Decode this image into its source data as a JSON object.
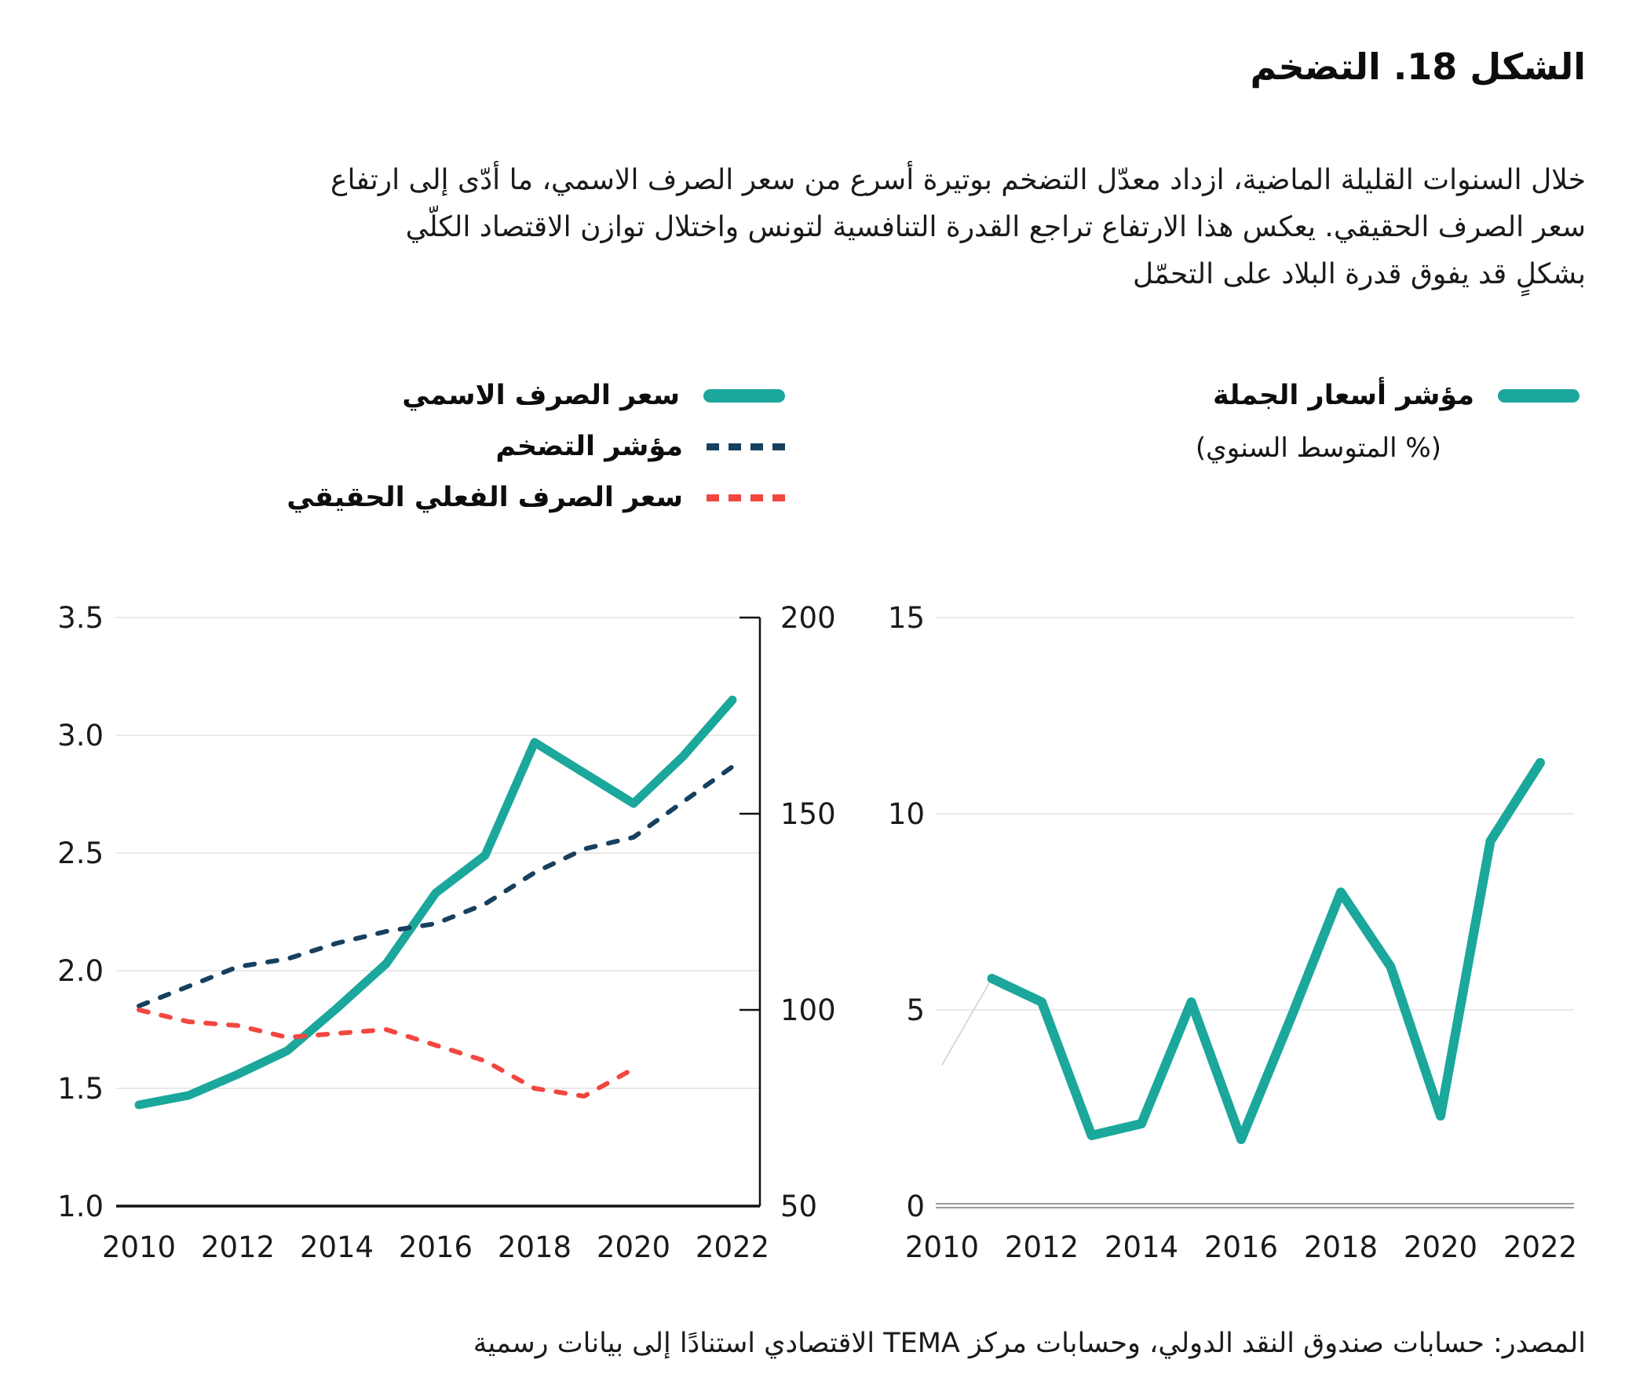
{
  "title": "الشكل 18. التضخم",
  "intro": {
    "lines": [
      "خلال السنوات القليلة الماضية، ازداد معدّل التضخم بوتيرة أسرع من سعر الصرف الاسمي، ما أدّى إلى ارتفاع",
      "سعر الصرف الحقيقي. يعكس هذا الارتفاع تراجع القدرة التنافسية لتونس واختلال توازن الاقتصاد الكلّي",
      "بشكلٍ قد يفوق قدرة البلاد على التحمّل"
    ]
  },
  "legend_left": {
    "items": [
      {
        "label": "سعر الصرف الاسمي",
        "style": "solid",
        "color": "#1BA79B"
      },
      {
        "label": "مؤشر التضخم",
        "style": "dashed",
        "color": "#17405F"
      },
      {
        "label": "سعر الصرف الفعلي الحقيقي",
        "style": "dashed",
        "color": "#F2473F"
      }
    ]
  },
  "legend_right": {
    "label": "مؤشر أسعار الجملة",
    "sublabel": "(% المتوسط السنوي)",
    "style": "solid",
    "color": "#1BA79B"
  },
  "source": "المصدر: حسابات صندوق النقد الدولي،  وحسابات مركز TEMA الاقتصادي استنادًا إلى بيانات رسمية",
  "colors": {
    "teal": "#1BA79B",
    "navy": "#17405F",
    "red": "#F2473F",
    "grid": "#E9E9E9",
    "axis": "#111111",
    "zero_axis": "#9B9B9B",
    "connector": "#D9D9D9",
    "text": "#1a1a1a"
  },
  "chart_data": [
    {
      "id": "exchange-inflation-chart",
      "type": "line",
      "x_ticks": [
        2010,
        2012,
        2014,
        2016,
        2018,
        2020,
        2022
      ],
      "left_axis": {
        "min": 1.0,
        "max": 3.5,
        "tick_values": [
          1.0,
          1.5,
          2.0,
          2.5,
          3.0,
          3.5
        ],
        "tick_labels": [
          "1.0",
          "1.5",
          "2.0",
          "2.5",
          "3.0",
          "3.5"
        ]
      },
      "right_axis": {
        "min": 50,
        "max": 200,
        "tick_values": [
          50,
          100,
          150,
          200
        ],
        "tick_labels": [
          "50",
          "100",
          "150",
          "200"
        ]
      },
      "grid": true,
      "series": [
        {
          "name": "سعر الصرف الاسمي",
          "key": "nominal-exchange-rate",
          "axis": "left",
          "dash": false,
          "color": "#1BA79B",
          "width": 11,
          "x": [
            2010,
            2011,
            2012,
            2013,
            2014,
            2015,
            2016,
            2017,
            2018,
            2019,
            2020,
            2021,
            2022
          ],
          "values": [
            1.43,
            1.47,
            1.56,
            1.66,
            1.84,
            2.03,
            2.33,
            2.49,
            2.97,
            2.84,
            2.71,
            2.91,
            3.15
          ]
        },
        {
          "name": "مؤشر التضخم",
          "key": "inflation-index",
          "axis": "right",
          "dash": true,
          "color": "#17405F",
          "width": 6,
          "x": [
            2010,
            2011,
            2012,
            2013,
            2014,
            2015,
            2016,
            2017,
            2018,
            2019,
            2020,
            2021,
            2022
          ],
          "values": [
            101,
            106,
            111,
            113,
            117,
            120,
            122,
            127,
            135,
            141,
            144,
            153,
            162
          ]
        },
        {
          "name": "سعر الصرف الفعلي الحقيقي",
          "key": "real-effective-exchange-rate",
          "axis": "right",
          "dash": true,
          "color": "#F2473F",
          "width": 6,
          "x": [
            2010,
            2011,
            2012,
            2013,
            2014,
            2015,
            2016,
            2017,
            2018,
            2019,
            2020
          ],
          "values": [
            100,
            97,
            96,
            93,
            94,
            95,
            91,
            87,
            80,
            78,
            85
          ]
        }
      ]
    },
    {
      "id": "wholesale-price-chart",
      "type": "line",
      "x_ticks": [
        2010,
        2012,
        2014,
        2016,
        2018,
        2020,
        2022
      ],
      "y_axis": {
        "min": 0,
        "max": 15,
        "tick_values": [
          0,
          5,
          10,
          15
        ],
        "tick_labels": [
          "0",
          "5",
          "10",
          "15"
        ]
      },
      "grid": true,
      "series": [
        {
          "name": "",
          "key": "leadin-connector",
          "dash": false,
          "color": "#D9D9D9",
          "width": 2,
          "x": [
            2010,
            2011
          ],
          "values": [
            3.6,
            5.8
          ]
        },
        {
          "name": "مؤشر أسعار الجملة",
          "key": "wholesale-price-index",
          "dash": false,
          "color": "#1BA79B",
          "width": 12,
          "x": [
            2011,
            2012,
            2013,
            2014,
            2015,
            2016,
            2017,
            2018,
            2019,
            2020,
            2021,
            2022
          ],
          "values": [
            5.8,
            5.2,
            1.8,
            2.1,
            5.2,
            1.7,
            4.8,
            8.0,
            6.1,
            2.3,
            9.3,
            11.3
          ]
        }
      ]
    }
  ]
}
